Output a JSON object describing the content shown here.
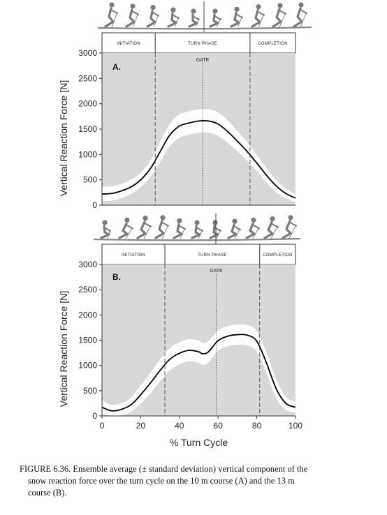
{
  "chart_data": [
    {
      "type": "line",
      "panel_label": "A.",
      "ylabel": "Vertical Reaction Force  [N]",
      "ylim": [
        0,
        3000
      ],
      "yticks": [
        0,
        500,
        1000,
        1500,
        2000,
        2500,
        3000
      ],
      "xlim": [
        0,
        100
      ],
      "phases": [
        {
          "label": "INITIATION",
          "start": 0,
          "end": 27.5
        },
        {
          "label": "TURN PHASE",
          "start": 27.5,
          "end": 76.5
        },
        {
          "label": "COMPLETION",
          "start": 76.5,
          "end": 100
        }
      ],
      "gate": {
        "label": "GATE",
        "x": 52
      },
      "series": [
        {
          "x": [
            0,
            5,
            10,
            15,
            20,
            25,
            30,
            35,
            40,
            45,
            50,
            55,
            60,
            65,
            70,
            75,
            80,
            85,
            90,
            95,
            100
          ],
          "mean": [
            220,
            230,
            280,
            360,
            500,
            720,
            1050,
            1380,
            1560,
            1620,
            1660,
            1660,
            1600,
            1450,
            1260,
            1060,
            830,
            590,
            380,
            230,
            140
          ],
          "sd": [
            140,
            140,
            140,
            140,
            140,
            160,
            200,
            220,
            230,
            230,
            230,
            230,
            230,
            220,
            200,
            180,
            160,
            140,
            120,
            100,
            80
          ]
        }
      ]
    },
    {
      "type": "line",
      "panel_label": "B.",
      "ylabel": "Vertical Reaction Force  [N]",
      "xlabel": "% Turn Cycle",
      "ylim": [
        0,
        3000
      ],
      "yticks": [
        0,
        500,
        1000,
        1500,
        2000,
        2500,
        3000
      ],
      "xlim": [
        0,
        100
      ],
      "xticks": [
        0,
        20,
        40,
        60,
        80,
        100
      ],
      "phases": [
        {
          "label": "INITIATION",
          "start": 0,
          "end": 32.5
        },
        {
          "label": "TURN PHASE",
          "start": 32.5,
          "end": 81.5
        },
        {
          "label": "COMPLETION",
          "start": 81.5,
          "end": 100
        }
      ],
      "gate": {
        "label": "GATE",
        "x": 59
      },
      "series": [
        {
          "x": [
            0,
            5,
            10,
            15,
            20,
            25,
            30,
            35,
            40,
            45,
            50,
            52,
            55,
            60,
            65,
            70,
            75,
            80,
            85,
            90,
            95,
            100
          ],
          "mean": [
            170,
            100,
            130,
            220,
            420,
            650,
            900,
            1120,
            1240,
            1300,
            1270,
            1230,
            1270,
            1490,
            1580,
            1610,
            1600,
            1480,
            1050,
            540,
            250,
            170
          ],
          "sd": [
            130,
            120,
            120,
            140,
            180,
            200,
            220,
            220,
            220,
            220,
            220,
            220,
            210,
            200,
            200,
            200,
            200,
            200,
            200,
            180,
            130,
            100
          ]
        }
      ]
    }
  ],
  "caption": {
    "line1": "FIGURE 6.36.  Ensemble average (± standard deviation) vertical component of the",
    "line2": "snow reaction force over the turn cycle on the 10 m course (A) and the 13 m",
    "line3": "course (B)."
  },
  "colors": {
    "plot_background": "#d8d8d8",
    "sd_band": "#ffffff",
    "mean_line": "#000000",
    "skier_figure": "#7a7a7a"
  }
}
